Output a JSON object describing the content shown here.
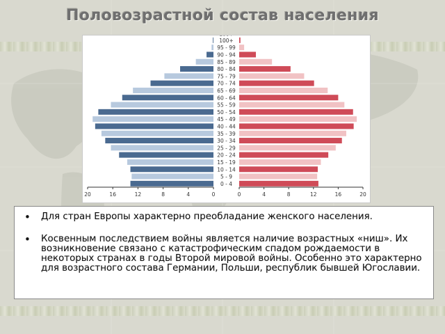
{
  "slide": {
    "title": "Половозрастной состав населения",
    "bullets": [
      "Для стран Европы характерно преобладание женского населения.",
      "Косвенным последствием войны является наличие возрастных «ниш». Их возникновение связано с катастрофическим спадом рождаемости в некоторых странах в годы Второй мировой войны. Особенно это характерно для возрастного состава Германии, Польши, республик бывшей Югославии."
    ],
    "bullet_symbol": "•"
  },
  "colors": {
    "male": "#4a6a90",
    "male_light": "#b7c9de",
    "female": "#cf4b58",
    "female_light": "#f1c2c4",
    "background": "#d9d9cf"
  },
  "chart_data": {
    "type": "bar",
    "orientation": "horizontal-population-pyramid",
    "categories": [
      "0 - 4",
      "5 - 9",
      "10 - 14",
      "15 - 19",
      "20 - 24",
      "25 - 29",
      "30 - 34",
      "35 - 39",
      "40 - 44",
      "45 - 49",
      "50 - 54",
      "55 - 59",
      "60 - 64",
      "65 - 69",
      "70 - 74",
      "75 - 79",
      "80 - 84",
      "85 - 89",
      "90 - 94",
      "95 - 99",
      "100+"
    ],
    "category_header": "100+",
    "series": [
      {
        "side": "left",
        "values": [
          13.2,
          13.0,
          13.2,
          13.7,
          15.0,
          16.3,
          17.2,
          17.8,
          18.8,
          19.2,
          18.3,
          16.3,
          14.5,
          12.8,
          10.0,
          7.8,
          5.3,
          2.8,
          1.1,
          0.3,
          0.1
        ]
      },
      {
        "side": "right",
        "values": [
          12.8,
          12.6,
          12.7,
          13.2,
          14.4,
          15.6,
          16.6,
          17.3,
          18.5,
          19.0,
          18.4,
          17.0,
          16.0,
          14.3,
          12.1,
          10.5,
          8.3,
          5.3,
          2.7,
          0.8,
          0.2
        ]
      }
    ],
    "xlim": [
      0,
      20
    ],
    "ticks": [
      "20",
      "16",
      "12",
      "8",
      "4",
      "0",
      "0",
      "4",
      "8",
      "12",
      "16",
      "20"
    ],
    "grid": false
  }
}
